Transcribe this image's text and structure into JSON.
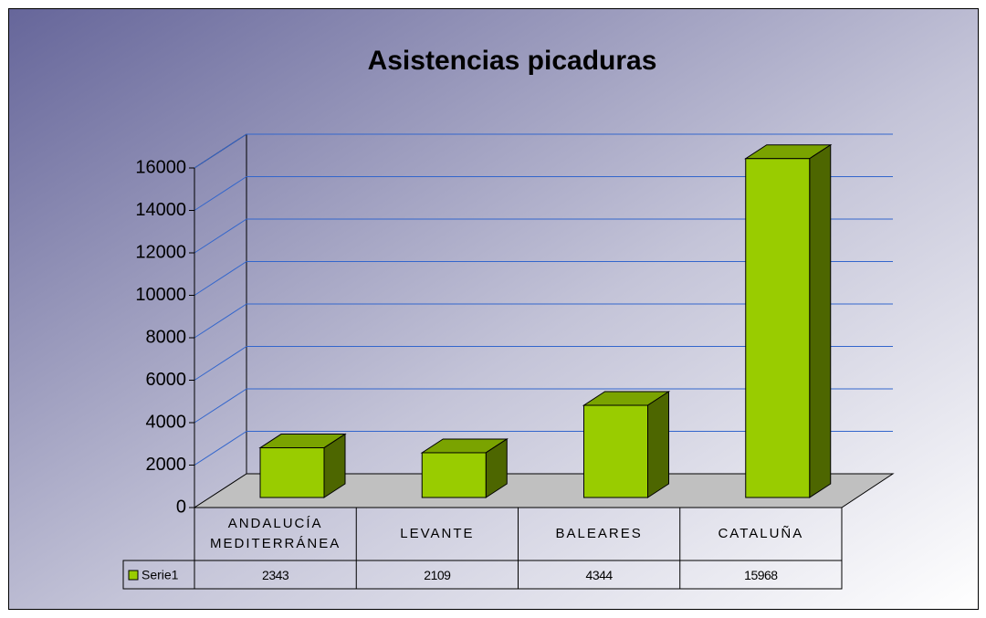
{
  "chart_data": {
    "type": "bar",
    "title": "Asistencias picaduras",
    "categories": [
      "ANDALUCÍA MEDITERRÁNEA",
      "LEVANTE",
      "BALEARES",
      "CATALUÑA"
    ],
    "series": [
      {
        "name": "Serie1",
        "color": "#99cc00",
        "values": [
          2343,
          2109,
          4344,
          15968
        ]
      }
    ],
    "ylim": [
      0,
      16000
    ],
    "yticks": [
      0,
      2000,
      4000,
      6000,
      8000,
      10000,
      12000,
      14000,
      16000
    ],
    "grid": true
  }
}
